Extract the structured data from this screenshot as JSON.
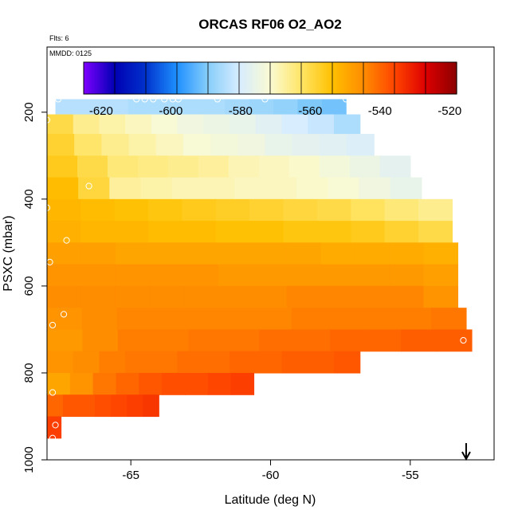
{
  "chart_data": {
    "type": "heatmap",
    "title": "ORCAS RF06 O2_AO2",
    "flts_label": "Flts: 6",
    "date_label": "MMDD: 0125",
    "xlabel": "Latitude (deg N)",
    "ylabel": "PSXC (mbar)",
    "xlim": [
      -68,
      -52.0
    ],
    "ylim": [
      1000,
      50
    ],
    "x_ticks": [
      -65,
      -60,
      -55
    ],
    "x_tick_labels": [
      "-65",
      "-60",
      "-55"
    ],
    "y_ticks": [
      200,
      400,
      600,
      800,
      1000
    ],
    "y_tick_labels": [
      "200",
      "400",
      "600",
      "800",
      "1000"
    ],
    "colorbar": {
      "range": [
        -625,
        -518
      ],
      "ticks": [
        -620,
        -600,
        -580,
        -560,
        -540,
        -520
      ],
      "tick_labels": [
        "-620",
        "-600",
        "-580",
        "-560",
        "-540",
        "-520"
      ],
      "colors": [
        "#7f00ff",
        "#0000b3",
        "#0033cc",
        "#1e90ff",
        "#87cefa",
        "#d6ecff",
        "#fafad2",
        "#ffe566",
        "#ffc000",
        "#ff8c00",
        "#ff4500",
        "#dd0000",
        "#8b0000"
      ]
    },
    "layers": [
      {
        "p_top": 170,
        "p_bot": 205,
        "lat_start": -67.7,
        "lat_end": -57.3,
        "values": [
          -584,
          -584,
          -584,
          -585,
          -585,
          -585,
          -585,
          -586,
          -587,
          -588,
          -590,
          -591
        ]
      },
      {
        "p_top": 205,
        "p_bot": 250,
        "lat_start": -68.0,
        "lat_end": -56.8,
        "values": [
          -560,
          -566,
          -568,
          -570,
          -572,
          -574,
          -575,
          -576,
          -578,
          -580,
          -582,
          -585
        ]
      },
      {
        "p_top": 250,
        "p_bot": 300,
        "lat_start": -68.0,
        "lat_end": -56.3,
        "values": [
          -558,
          -563,
          -566,
          -568,
          -570,
          -572,
          -573,
          -574,
          -576,
          -577,
          -578,
          -579
        ]
      },
      {
        "p_top": 300,
        "p_bot": 350,
        "lat_start": -68.0,
        "lat_end": -55.0,
        "values": [
          -556,
          -560,
          -564,
          -565,
          -566,
          -567,
          -569,
          -570,
          -571,
          -573,
          -575,
          -577
        ]
      },
      {
        "p_top": 350,
        "p_bot": 400,
        "lat_start": -68.0,
        "lat_end": -54.6,
        "values": [
          -553,
          -559,
          -567,
          -568,
          -569,
          -569,
          -570,
          -570,
          -571,
          -572,
          -574,
          -576
        ]
      },
      {
        "p_top": 400,
        "p_bot": 450,
        "lat_start": -68.0,
        "lat_end": -53.5,
        "values": [
          -552,
          -553,
          -554,
          -555,
          -556,
          -557,
          -558,
          -559,
          -560,
          -562,
          -564,
          -566
        ]
      },
      {
        "p_top": 450,
        "p_bot": 500,
        "lat_start": -68.0,
        "lat_end": -53.5,
        "values": [
          -551,
          -552,
          -552,
          -553,
          -553,
          -554,
          -554,
          -555,
          -555,
          -556,
          -558,
          -560
        ]
      },
      {
        "p_top": 500,
        "p_bot": 550,
        "lat_start": -68.0,
        "lat_end": -53.3,
        "values": [
          -548,
          -548,
          -549,
          -549,
          -549,
          -549,
          -549,
          -549,
          -550,
          -550,
          -550,
          -551
        ]
      },
      {
        "p_top": 550,
        "p_bot": 600,
        "lat_start": -68.0,
        "lat_end": -53.3,
        "values": [
          -546,
          -546,
          -546,
          -546,
          -546,
          -547,
          -547,
          -547,
          -547,
          -547,
          -547,
          -548
        ]
      },
      {
        "p_top": 600,
        "p_bot": 650,
        "lat_start": -68.0,
        "lat_end": -53.3,
        "values": [
          -545,
          -545,
          -545,
          -545,
          -545,
          -545,
          -545,
          -544,
          -544,
          -544,
          -544,
          -546
        ]
      },
      {
        "p_top": 650,
        "p_bot": 700,
        "lat_start": -68.0,
        "lat_end": -53.0,
        "values": [
          -546,
          -545,
          -544,
          -544,
          -544,
          -544,
          -544,
          -543,
          -543,
          -543,
          -543,
          -542
        ]
      },
      {
        "p_top": 700,
        "p_bot": 750,
        "lat_start": -68.0,
        "lat_end": -52.8,
        "values": [
          -547,
          -545,
          -543,
          -543,
          -542,
          -542,
          -541,
          -541,
          -540,
          -540,
          -539,
          -539
        ]
      },
      {
        "p_top": 750,
        "p_bot": 800,
        "lat_start": -68.0,
        "lat_end": -56.8,
        "values": [
          -546,
          -545,
          -543,
          -542,
          -542,
          -541,
          -541,
          -540,
          -540,
          -539,
          -539,
          -538
        ]
      },
      {
        "p_top": 800,
        "p_bot": 850,
        "lat_start": -68.0,
        "lat_end": -60.6,
        "values": [
          -549,
          -546,
          -542,
          -540,
          -538,
          -537,
          -537,
          -536,
          -535
        ]
      },
      {
        "p_top": 850,
        "p_bot": 900,
        "lat_start": -68.0,
        "lat_end": -64.0,
        "values": [
          -540,
          -538,
          -538,
          -537,
          -536,
          -535,
          -534
        ]
      },
      {
        "p_top": 900,
        "p_bot": 950,
        "lat_start": -68.0,
        "lat_end": -67.5,
        "values": [
          -535
        ]
      }
    ],
    "points": [
      {
        "x": -67.6,
        "y": 170
      },
      {
        "x": -64.8,
        "y": 170
      },
      {
        "x": -64.5,
        "y": 170
      },
      {
        "x": -64.2,
        "y": 170
      },
      {
        "x": -63.8,
        "y": 170
      },
      {
        "x": -63.5,
        "y": 170
      },
      {
        "x": -63.3,
        "y": 170
      },
      {
        "x": -61.9,
        "y": 170
      },
      {
        "x": -60.2,
        "y": 170
      },
      {
        "x": -57.3,
        "y": 170
      },
      {
        "x": -68.0,
        "y": 218
      },
      {
        "x": -66.5,
        "y": 370
      },
      {
        "x": -68.0,
        "y": 420
      },
      {
        "x": -67.3,
        "y": 495
      },
      {
        "x": -67.9,
        "y": 545
      },
      {
        "x": -67.8,
        "y": 690
      },
      {
        "x": -67.4,
        "y": 665
      },
      {
        "x": -53.1,
        "y": 725
      },
      {
        "x": -67.8,
        "y": 845
      },
      {
        "x": -67.7,
        "y": 920
      },
      {
        "x": -67.8,
        "y": 950
      }
    ],
    "arrow_lat": -53.0
  }
}
